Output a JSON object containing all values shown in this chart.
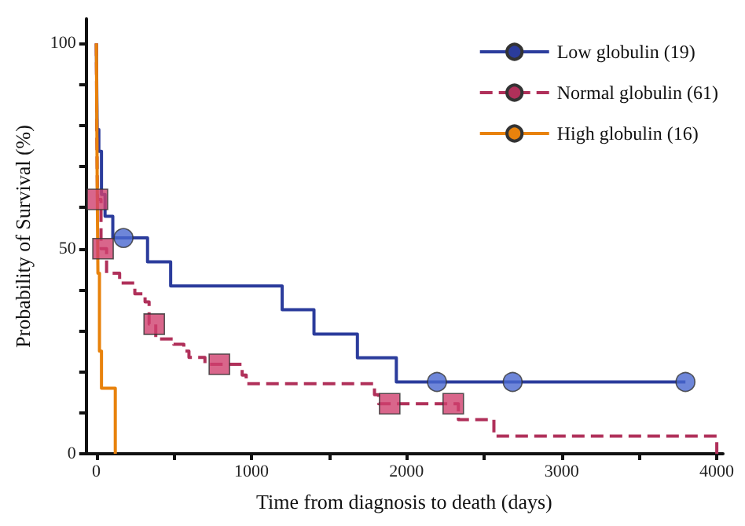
{
  "chart_data": {
    "type": "step",
    "xlabel": "Time from diagnosis to death (days)",
    "ylabel": "Probability of Survival (%)",
    "xlim": [
      -70,
      4040
    ],
    "ylim": [
      0,
      106
    ],
    "xticks": [
      0,
      {
        "value": 500,
        "label": null
      },
      1000,
      {
        "value": 1500,
        "label": null
      },
      2000,
      {
        "value": 2500,
        "label": null
      },
      3000,
      {
        "value": 3500,
        "label": null
      },
      4000
    ],
    "yticks": [
      0,
      {
        "value": 10,
        "label": null
      },
      {
        "value": 20,
        "label": null
      },
      {
        "value": 30,
        "label": null
      },
      {
        "value": 40,
        "label": null
      },
      50,
      {
        "value": 60,
        "label": null
      },
      {
        "value": 70,
        "label": null
      },
      {
        "value": 80,
        "label": null
      },
      {
        "value": 90,
        "label": null
      },
      100
    ],
    "grid": false,
    "legend": "top right",
    "series": [
      {
        "name": "Low globulin (19)",
        "color": "#2b3c9c",
        "line_style": "solid",
        "x": [
          0,
          5,
          16,
          33,
          56,
          106,
          330,
          479,
          1198,
          1403,
          1683,
          1934,
          3798
        ],
        "values": [
          100,
          79,
          73.7,
          63.2,
          57.9,
          52.6,
          46.8,
          40.9,
          35.1,
          29.2,
          23.4,
          17.5,
          17.5
        ]
      },
      {
        "name": "Normal globulin (61)",
        "color": "#b0305a",
        "line_style": "dashed",
        "x": [
          0,
          3,
          7,
          30,
          66,
          150,
          248,
          314,
          340,
          383,
          498,
          564,
          597,
          700,
          940,
          966,
          1793,
          1820,
          2334,
          2563,
          4000
        ],
        "values": [
          100,
          78,
          62,
          50,
          44,
          41.6,
          39,
          37,
          31.6,
          28,
          26.7,
          25,
          23.5,
          21.8,
          19.2,
          17.1,
          14.4,
          12.2,
          8.3,
          4.3,
          0
        ]
      },
      {
        "name": "High globulin (16)",
        "color": "#e8820c",
        "line_style": "solid",
        "x": [
          0,
          3,
          6,
          10,
          20,
          33,
          122
        ],
        "values": [
          100,
          81,
          62.5,
          44,
          25,
          16,
          0
        ]
      },
      {
        "type": "scatter",
        "color": "#4a68d0",
        "marker": "circle",
        "x": [
          175,
          2196,
          2684,
          3798
        ],
        "values": [
          52.6,
          17.5,
          17.5,
          17.5
        ]
      },
      {
        "type": "scatter",
        "color": "#d0406e",
        "marker": "square",
        "x": [
          7,
          43,
          373,
          793,
          1891,
          2301
        ],
        "values": [
          62,
          50,
          31.6,
          21.8,
          12.2,
          12.2
        ]
      }
    ]
  }
}
